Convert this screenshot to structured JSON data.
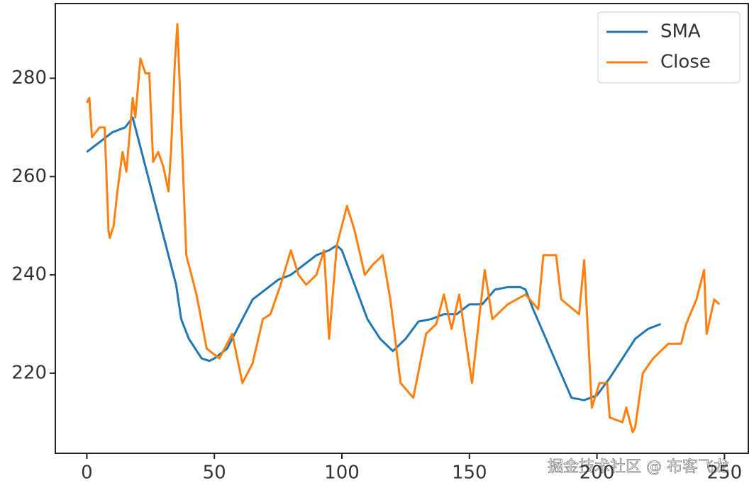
{
  "chart_data": {
    "type": "line",
    "legend": "upper right",
    "xlim": [
      -12.35,
      259.35
    ],
    "ylim": [
      203.7,
      295.2
    ],
    "xticks": [
      0,
      50,
      100,
      150,
      200,
      250
    ],
    "yticks": [
      220,
      240,
      260,
      280
    ],
    "watermark": "掘金技术社区 @ 布客飞龙",
    "series": [
      {
        "name": "SMA",
        "color": "#1f77b4",
        "x": [
          0,
          5,
          10,
          15,
          18,
          20,
          25,
          30,
          35,
          37,
          40,
          45,
          48,
          50,
          55,
          60,
          65,
          70,
          75,
          80,
          85,
          90,
          95,
          98,
          100,
          105,
          110,
          115,
          120,
          125,
          130,
          135,
          140,
          145,
          150,
          155,
          160,
          165,
          170,
          172,
          175,
          180,
          185,
          190,
          195,
          200,
          205,
          210,
          215,
          220,
          225
        ],
        "values": [
          265,
          267,
          269,
          270,
          272,
          268,
          258,
          248,
          238,
          231,
          227,
          223,
          222.5,
          223,
          225,
          230,
          235,
          237,
          239,
          240,
          242,
          244,
          245,
          246,
          245,
          238,
          231,
          227,
          224.5,
          227,
          230.5,
          231,
          232,
          232,
          234,
          234,
          237,
          237.5,
          237.5,
          237,
          233,
          227,
          221,
          215,
          214.5,
          215.5,
          219,
          223,
          227,
          229,
          230
        ]
      },
      {
        "name": "Close",
        "color": "#ff7f0e",
        "x": [
          0,
          1,
          2,
          5,
          7,
          8.5,
          9,
          10.5,
          12,
          14,
          15.5,
          18,
          19,
          21,
          23,
          24.5,
          26,
          28,
          30,
          32,
          33,
          34.5,
          35.5,
          39,
          43,
          47,
          52,
          57,
          61,
          65,
          69,
          72,
          76,
          80,
          83,
          86,
          90,
          93,
          95,
          98,
          102,
          105,
          109,
          112,
          116,
          119,
          123,
          128,
          133,
          137,
          140,
          143,
          146,
          151,
          154,
          156,
          159,
          165,
          172,
          177,
          179,
          184,
          186,
          193,
          195,
          198,
          201,
          204,
          205,
          210,
          211.5,
          214,
          215,
          218,
          222,
          228,
          233,
          235,
          239,
          242,
          243,
          246,
          248
        ],
        "values": [
          275,
          276,
          268,
          270,
          270,
          249,
          247.5,
          250,
          257,
          265,
          261,
          276,
          272,
          284,
          281,
          281,
          263,
          265,
          262,
          257,
          265,
          283,
          291,
          244,
          236,
          225,
          223,
          228,
          218,
          222,
          231,
          232,
          238,
          245,
          240,
          238,
          240,
          245,
          227,
          246,
          254,
          249,
          240,
          242,
          244,
          235,
          218,
          215,
          228,
          230,
          236,
          229,
          236,
          218,
          232,
          241,
          231,
          234,
          236,
          233,
          244,
          244,
          235,
          232,
          243,
          213,
          218,
          218,
          211,
          210,
          213,
          208,
          209,
          220,
          223,
          226,
          226,
          230,
          235,
          241,
          228,
          235,
          234
        ]
      }
    ]
  }
}
